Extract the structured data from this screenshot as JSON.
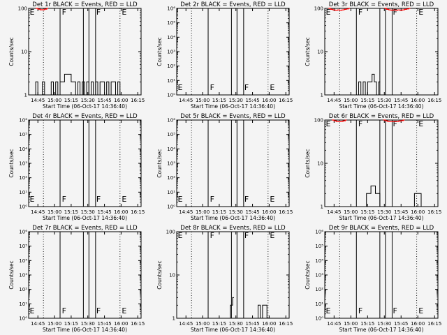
{
  "window": {
    "background": "#f4f4f4"
  },
  "colors": {
    "events": "#000000",
    "lld": "#ff0000"
  },
  "chart_data": [
    {
      "type": "line",
      "title": "Det 1r BLACK = Events, RED = LLD",
      "xlabel": "Start Time (06-Oct-17 14:36:40)",
      "ylabel": "Counts/sec",
      "yscale": "log",
      "xlim": [
        "14:36:40",
        "16:18:00"
      ],
      "ylim": [
        1,
        100
      ],
      "yticks": [
        {
          "value": 1,
          "label": "1"
        },
        {
          "value": 10,
          "label": "10"
        },
        {
          "value": 100,
          "label": "100"
        }
      ],
      "xticks": [
        "14:45",
        "15:00",
        "15:15",
        "15:30",
        "15:45",
        "16:00",
        "16:15"
      ],
      "dotted_lines": [
        "14:50",
        "15:59"
      ],
      "solid_lines": [
        "15:05",
        "15:26",
        "15:31",
        "15:37"
      ],
      "flags": [
        {
          "text": "E",
          "x": "14:37",
          "y": 100
        },
        {
          "text": "F",
          "x": "15:06",
          "y": 100
        },
        {
          "text": "F",
          "x": "15:37",
          "y": 100
        },
        {
          "text": "E",
          "x": "16:00",
          "y": 100
        }
      ],
      "series": [
        {
          "color": "#ff0000",
          "x": [
            "14:43",
            "14:45",
            "14:47",
            "14:49",
            "14:51",
            "14:53"
          ],
          "values": [
            100,
            96,
            93,
            93,
            96,
            100
          ]
        },
        {
          "color": "#000000",
          "x": [
            "14:41",
            "14:43",
            "14:45",
            "14:47",
            "14:49",
            "14:51",
            "14:53",
            "14:55",
            "14:57",
            "14:59",
            "15:01",
            "15:03",
            "15:05",
            "15:07",
            "15:09",
            "15:11",
            "15:13",
            "15:15",
            "15:17",
            "15:19",
            "15:21",
            "15:23",
            "15:25",
            "15:27",
            "15:29",
            "15:31",
            "15:33",
            "15:35",
            "15:37",
            "15:39",
            "15:41",
            "15:43",
            "15:45",
            "15:47",
            "15:49",
            "15:51",
            "15:53",
            "15:55",
            "15:57",
            "15:59",
            "16:01"
          ],
          "values": [
            1,
            2,
            1,
            1,
            2,
            1,
            1,
            1,
            2,
            1,
            2,
            1,
            2,
            2,
            3,
            3,
            3,
            2,
            2,
            1,
            2,
            1,
            2,
            1,
            2,
            1,
            2,
            1,
            2,
            1,
            2,
            2,
            1,
            2,
            1,
            2,
            2,
            1,
            2,
            1,
            1
          ]
        }
      ]
    },
    {
      "type": "line",
      "title": "Det 2r BLACK = Events, RED = LLD",
      "xlabel": "Start Time (06-Oct-17 14:36:40)",
      "ylabel": "Counts/sec",
      "yscale": "log",
      "xlim": [
        "14:36:40",
        "16:18:00"
      ],
      "ylim": [
        1,
        1000000
      ],
      "yticks": [
        {
          "value": 1,
          "label": "10⁰"
        },
        {
          "value": 10,
          "label": "10¹"
        },
        {
          "value": 100,
          "label": "10²"
        },
        {
          "value": 1000,
          "label": "10³"
        },
        {
          "value": 10000,
          "label": "10⁴"
        },
        {
          "value": 100000,
          "label": "10⁵"
        },
        {
          "value": 1000000,
          "label": "10⁶"
        }
      ],
      "xticks": [
        "14:45",
        "15:00",
        "15:15",
        "15:30",
        "15:45",
        "16:00",
        "16:15"
      ],
      "dotted_lines": [
        "14:50",
        "15:59"
      ],
      "solid_lines": [
        "15:05",
        "15:26",
        "15:31",
        "15:37"
      ],
      "flags": [
        {
          "text": "E",
          "x": "14:37",
          "y": 6
        },
        {
          "text": "F",
          "x": "15:06",
          "y": 6
        },
        {
          "text": "F",
          "x": "15:37",
          "y": 6
        },
        {
          "text": "E",
          "x": "16:00",
          "y": 6
        }
      ],
      "series": []
    },
    {
      "type": "line",
      "title": "Det 3r BLACK = Events, RED = LLD",
      "xlabel": "Start Time (06-Oct-17 14:36:40)",
      "ylabel": "Counts/sec",
      "yscale": "log",
      "xlim": [
        "14:36:40",
        "16:18:00"
      ],
      "ylim": [
        1,
        100
      ],
      "yticks": [
        {
          "value": 1,
          "label": "1"
        },
        {
          "value": 10,
          "label": "10"
        },
        {
          "value": 100,
          "label": "100"
        }
      ],
      "xticks": [
        "14:45",
        "15:00",
        "15:15",
        "15:30",
        "15:45",
        "16:00",
        "16:15"
      ],
      "dotted_lines": [
        "14:50",
        "15:59"
      ],
      "solid_lines": [
        "15:05",
        "15:26",
        "15:31",
        "15:37"
      ],
      "flags": [
        {
          "text": "E",
          "x": "14:37",
          "y": 100
        },
        {
          "text": "F",
          "x": "15:06",
          "y": 100
        },
        {
          "text": "F",
          "x": "15:37",
          "y": 100
        },
        {
          "text": "E",
          "x": "16:00",
          "y": 100
        }
      ],
      "series": [
        {
          "color": "#ff0000",
          "x": [
            "14:40",
            "14:42",
            "14:44",
            "14:46",
            "14:48",
            "14:50",
            "14:52",
            "14:54",
            "14:56",
            "14:58"
          ],
          "values": [
            100,
            95,
            92,
            90,
            92,
            90,
            92,
            95,
            97,
            100
          ]
        },
        {
          "color": "#ff0000",
          "x": [
            "15:30",
            "15:32",
            "15:34",
            "15:36",
            "15:38",
            "15:40",
            "15:42",
            "15:44",
            "15:46",
            "15:48",
            "15:50",
            "15:52"
          ],
          "values": [
            100,
            95,
            92,
            90,
            92,
            90,
            92,
            90,
            92,
            95,
            97,
            100
          ]
        },
        {
          "color": "#000000",
          "x": [
            "15:05",
            "15:07",
            "15:09",
            "15:11",
            "15:13",
            "15:15",
            "15:17",
            "15:19",
            "15:21",
            "15:23",
            "15:25"
          ],
          "values": [
            1,
            2,
            1,
            2,
            1,
            2,
            2,
            3,
            2,
            1,
            2
          ]
        }
      ]
    },
    {
      "type": "line",
      "title": "Det 4r BLACK = Events, RED = LLD",
      "xlabel": "Start Time (06-Oct-17 14:36:40)",
      "ylabel": "Counts/sec",
      "yscale": "log",
      "xlim": [
        "14:36:40",
        "16:18:00"
      ],
      "ylim": [
        1,
        1000000
      ],
      "yticks": [
        {
          "value": 1,
          "label": "10⁰"
        },
        {
          "value": 10,
          "label": "10¹"
        },
        {
          "value": 100,
          "label": "10²"
        },
        {
          "value": 1000,
          "label": "10³"
        },
        {
          "value": 10000,
          "label": "10⁴"
        },
        {
          "value": 100000,
          "label": "10⁵"
        },
        {
          "value": 1000000,
          "label": "10⁶"
        }
      ],
      "xticks": [
        "14:45",
        "15:00",
        "15:15",
        "15:30",
        "15:45",
        "16:00",
        "16:15"
      ],
      "dotted_lines": [
        "14:50",
        "15:59"
      ],
      "solid_lines": [
        "15:05",
        "15:26",
        "15:31",
        "15:37"
      ],
      "flags": [
        {
          "text": "E",
          "x": "14:37",
          "y": 6
        },
        {
          "text": "F",
          "x": "15:06",
          "y": 6
        },
        {
          "text": "F",
          "x": "15:37",
          "y": 6
        },
        {
          "text": "E",
          "x": "16:00",
          "y": 6
        }
      ],
      "series": []
    },
    {
      "type": "line",
      "title": "Det 5r BLACK = Events, RED = LLD",
      "xlabel": "Start Time (06-Oct-17 14:36:40)",
      "ylabel": "Counts/sec",
      "yscale": "log",
      "xlim": [
        "14:36:40",
        "16:18:00"
      ],
      "ylim": [
        1,
        1000000
      ],
      "yticks": [
        {
          "value": 1,
          "label": "10⁰"
        },
        {
          "value": 10,
          "label": "10¹"
        },
        {
          "value": 100,
          "label": "10²"
        },
        {
          "value": 1000,
          "label": "10³"
        },
        {
          "value": 10000,
          "label": "10⁴"
        },
        {
          "value": 100000,
          "label": "10⁵"
        },
        {
          "value": 1000000,
          "label": "10⁶"
        }
      ],
      "xticks": [
        "14:45",
        "15:00",
        "15:15",
        "15:30",
        "15:45",
        "16:00",
        "16:15"
      ],
      "dotted_lines": [
        "14:50",
        "15:59"
      ],
      "solid_lines": [
        "15:05",
        "15:26",
        "15:31",
        "15:37"
      ],
      "flags": [
        {
          "text": "E",
          "x": "14:37",
          "y": 6
        },
        {
          "text": "F",
          "x": "15:06",
          "y": 6
        },
        {
          "text": "F",
          "x": "15:37",
          "y": 6
        },
        {
          "text": "E",
          "x": "16:00",
          "y": 6
        }
      ],
      "series": []
    },
    {
      "type": "line",
      "title": "Det 6r BLACK = Events, RED = LLD",
      "xlabel": "Start Time (06-Oct-17 14:36:40)",
      "ylabel": "Counts/sec",
      "yscale": "log",
      "xlim": [
        "14:36:40",
        "16:18:00"
      ],
      "ylim": [
        1,
        100
      ],
      "yticks": [
        {
          "value": 1,
          "label": "1"
        },
        {
          "value": 10,
          "label": "10"
        },
        {
          "value": 100,
          "label": "100"
        }
      ],
      "xticks": [
        "14:45",
        "15:00",
        "15:15",
        "15:30",
        "15:45",
        "16:00",
        "16:15"
      ],
      "dotted_lines": [
        "14:50",
        "15:59"
      ],
      "solid_lines": [
        "15:05",
        "15:26",
        "15:31",
        "15:37"
      ],
      "flags": [
        {
          "text": "E",
          "x": "14:37",
          "y": 100
        },
        {
          "text": "F",
          "x": "15:06",
          "y": 100
        },
        {
          "text": "F",
          "x": "15:37",
          "y": 100
        },
        {
          "text": "E",
          "x": "16:00",
          "y": 100
        }
      ],
      "series": [
        {
          "color": "#ff0000",
          "x": [
            "14:43",
            "14:45",
            "14:47",
            "14:49",
            "14:51",
            "14:53",
            "14:55"
          ],
          "values": [
            100,
            96,
            93,
            92,
            93,
            96,
            100
          ]
        },
        {
          "color": "#ff0000",
          "x": [
            "15:29",
            "15:31",
            "15:33",
            "15:35",
            "15:37",
            "15:39",
            "15:41",
            "15:43",
            "15:45",
            "15:47"
          ],
          "values": [
            100,
            96,
            93,
            92,
            93,
            92,
            93,
            95,
            97,
            100
          ]
        },
        {
          "color": "#000000",
          "x": [
            "15:12",
            "15:14",
            "15:16",
            "15:18",
            "15:20",
            "15:22",
            "15:24",
            "15:26"
          ],
          "values": [
            1,
            2,
            2,
            3,
            3,
            2,
            2,
            1
          ]
        },
        {
          "color": "#000000",
          "x": [
            "15:55",
            "15:57",
            "15:59",
            "16:01",
            "16:03"
          ],
          "values": [
            1,
            2,
            2,
            2,
            1
          ]
        }
      ]
    },
    {
      "type": "line",
      "title": "Det 7r BLACK = Events, RED = LLD",
      "xlabel": "Start Time (06-Oct-17 14:36:40)",
      "ylabel": "Counts/sec",
      "yscale": "log",
      "xlim": [
        "14:36:40",
        "16:18:00"
      ],
      "ylim": [
        1,
        1000000
      ],
      "yticks": [
        {
          "value": 1,
          "label": "10⁰"
        },
        {
          "value": 10,
          "label": "10¹"
        },
        {
          "value": 100,
          "label": "10²"
        },
        {
          "value": 1000,
          "label": "10³"
        },
        {
          "value": 10000,
          "label": "10⁴"
        },
        {
          "value": 100000,
          "label": "10⁵"
        },
        {
          "value": 1000000,
          "label": "10⁶"
        }
      ],
      "xticks": [
        "14:45",
        "15:00",
        "15:15",
        "15:30",
        "15:45",
        "16:00",
        "16:15"
      ],
      "dotted_lines": [
        "14:50",
        "15:59"
      ],
      "solid_lines": [
        "15:05",
        "15:26",
        "15:31",
        "15:37"
      ],
      "flags": [
        {
          "text": "E",
          "x": "14:37",
          "y": 6
        },
        {
          "text": "F",
          "x": "15:06",
          "y": 6
        },
        {
          "text": "F",
          "x": "15:37",
          "y": 6
        },
        {
          "text": "E",
          "x": "16:00",
          "y": 6
        }
      ],
      "series": []
    },
    {
      "type": "line",
      "title": "Det 8r BLACK = Events, RED = LLD",
      "xlabel": "Start Time (06-Oct-17 14:36:40)",
      "ylabel": "Counts/sec",
      "yscale": "log",
      "xlim": [
        "14:36:40",
        "16:18:00"
      ],
      "ylim": [
        1,
        100
      ],
      "yticks": [
        {
          "value": 1,
          "label": "1"
        },
        {
          "value": 10,
          "label": "10"
        },
        {
          "value": 100,
          "label": "100"
        }
      ],
      "xticks": [
        "14:45",
        "15:00",
        "15:15",
        "15:30",
        "15:45",
        "16:00",
        "16:15"
      ],
      "dotted_lines": [
        "14:50",
        "15:59"
      ],
      "solid_lines": [
        "15:05",
        "15:26",
        "15:31",
        "15:37"
      ],
      "flags": [
        {
          "text": "E",
          "x": "14:37",
          "y": 100
        },
        {
          "text": "F",
          "x": "15:06",
          "y": 100
        },
        {
          "text": "F",
          "x": "15:37",
          "y": 100
        },
        {
          "text": "E",
          "x": "16:00",
          "y": 100
        }
      ],
      "series": [
        {
          "color": "#000000",
          "x": [
            "15:24",
            "15:25",
            "15:26",
            "15:27"
          ],
          "values": [
            1,
            2,
            2,
            3
          ]
        },
        {
          "color": "#000000",
          "x": [
            "15:36",
            "15:38",
            "15:40",
            "15:42"
          ],
          "values": [
            1,
            1,
            1,
            1
          ]
        },
        {
          "color": "#000000",
          "x": [
            "15:48",
            "15:50",
            "15:52",
            "15:54",
            "15:56",
            "15:58"
          ],
          "values": [
            1,
            2,
            1,
            2,
            2,
            1
          ]
        }
      ]
    },
    {
      "type": "line",
      "title": "Det 9r BLACK = Events, RED = LLD",
      "xlabel": "Start Time (06-Oct-17 14:36:40)",
      "ylabel": "Counts/sec",
      "yscale": "log",
      "xlim": [
        "14:36:40",
        "16:18:00"
      ],
      "ylim": [
        1,
        1000000
      ],
      "yticks": [
        {
          "value": 1,
          "label": "10⁰"
        },
        {
          "value": 10,
          "label": "10¹"
        },
        {
          "value": 100,
          "label": "10²"
        },
        {
          "value": 1000,
          "label": "10³"
        },
        {
          "value": 10000,
          "label": "10⁴"
        },
        {
          "value": 100000,
          "label": "10⁵"
        },
        {
          "value": 1000000,
          "label": "10⁶"
        }
      ],
      "xticks": [
        "14:45",
        "15:00",
        "15:15",
        "15:30",
        "15:45",
        "16:00",
        "16:15"
      ],
      "dotted_lines": [
        "14:50",
        "15:59"
      ],
      "solid_lines": [
        "15:05",
        "15:26",
        "15:31",
        "15:37"
      ],
      "flags": [
        {
          "text": "E",
          "x": "14:37",
          "y": 6
        },
        {
          "text": "F",
          "x": "15:06",
          "y": 6
        },
        {
          "text": "F",
          "x": "15:37",
          "y": 6
        },
        {
          "text": "E",
          "x": "16:00",
          "y": 6
        }
      ],
      "series": []
    }
  ]
}
